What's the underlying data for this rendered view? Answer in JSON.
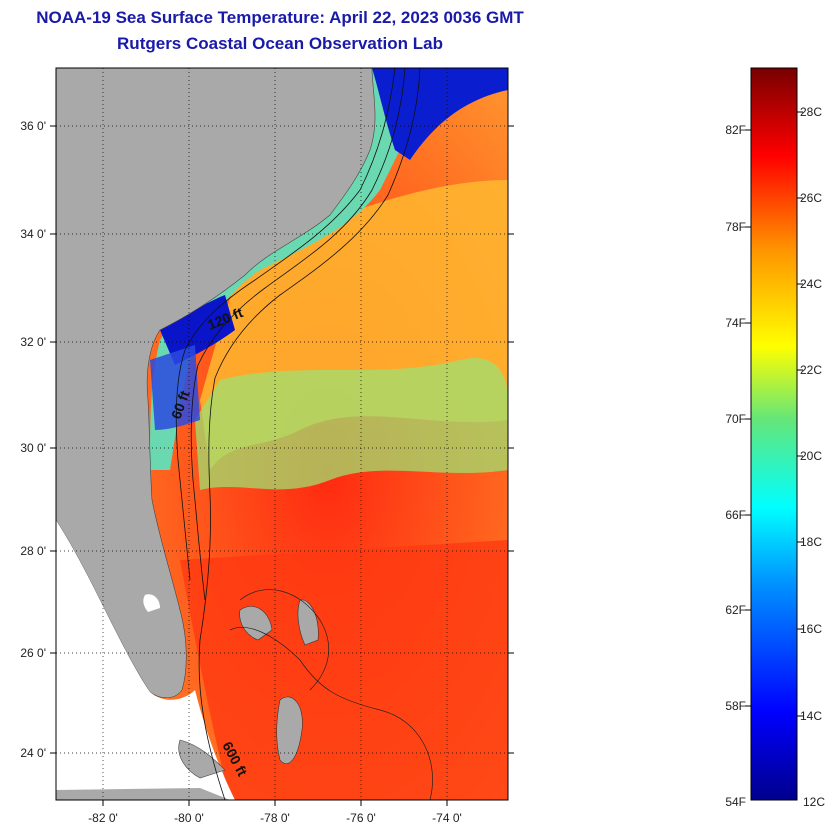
{
  "header": {
    "title": "NOAA-19 Sea Surface Temperature:  April 22, 2023 0036 GMT",
    "subtitle": "Rutgers Coastal Ocean Observation Lab"
  },
  "map": {
    "lat_ticks": [
      "36 0'",
      "34 0'",
      "32 0'",
      "30 0'",
      "28 0'",
      "26 0'",
      "24 0'"
    ],
    "lon_ticks": [
      "-82 0'",
      "-80 0'",
      "-78 0'",
      "-76 0'",
      "-74 0'"
    ],
    "depth_contours": [
      "120 ft",
      "60 ft",
      "600 ft"
    ],
    "colors": {
      "land": "#a9a9a9",
      "warm": "#ff5a1e",
      "cool": "#8ce67a",
      "cold": "#0a14c8"
    }
  },
  "colorbar": {
    "fahrenheit_labels": [
      "82F",
      "78F",
      "74F",
      "70F",
      "66F",
      "62F",
      "58F",
      "54F"
    ],
    "celsius_labels": [
      "28C",
      "26C",
      "24C",
      "22C",
      "20C",
      "18C",
      "16C",
      "14C",
      "12C"
    ]
  }
}
